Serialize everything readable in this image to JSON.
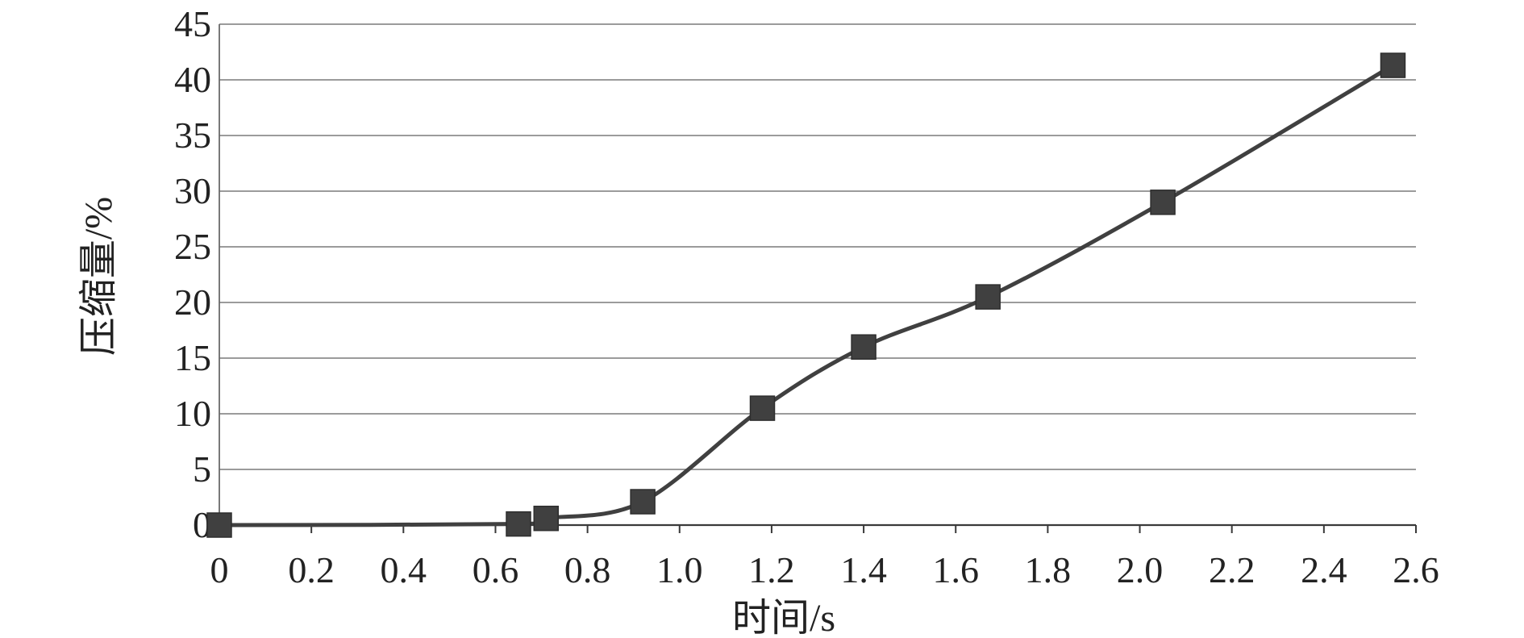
{
  "chart_data": {
    "type": "line",
    "xlabel": "时间/s",
    "ylabel": "压缩量/%",
    "xlim": [
      0,
      2.6
    ],
    "ylim": [
      0,
      45
    ],
    "x_ticks": [
      "0",
      "0.2",
      "0.4",
      "0.6",
      "0.8",
      "1.0",
      "1.2",
      "1.4",
      "1.6",
      "1.8",
      "2.0",
      "2.2",
      "2.4",
      "2.6"
    ],
    "y_ticks": [
      "0",
      "5",
      "10",
      "15",
      "20",
      "25",
      "30",
      "35",
      "40",
      "45"
    ],
    "grid": "horizontal",
    "marker": "square",
    "line_style": "smooth",
    "series": [
      {
        "color": "#404040",
        "x": [
          0,
          0.65,
          0.71,
          0.92,
          1.18,
          1.4,
          1.67,
          2.05,
          2.55
        ],
        "y": [
          0,
          0.1,
          0.6,
          2.1,
          10.5,
          16.0,
          20.5,
          29.0,
          41.3
        ]
      }
    ]
  }
}
